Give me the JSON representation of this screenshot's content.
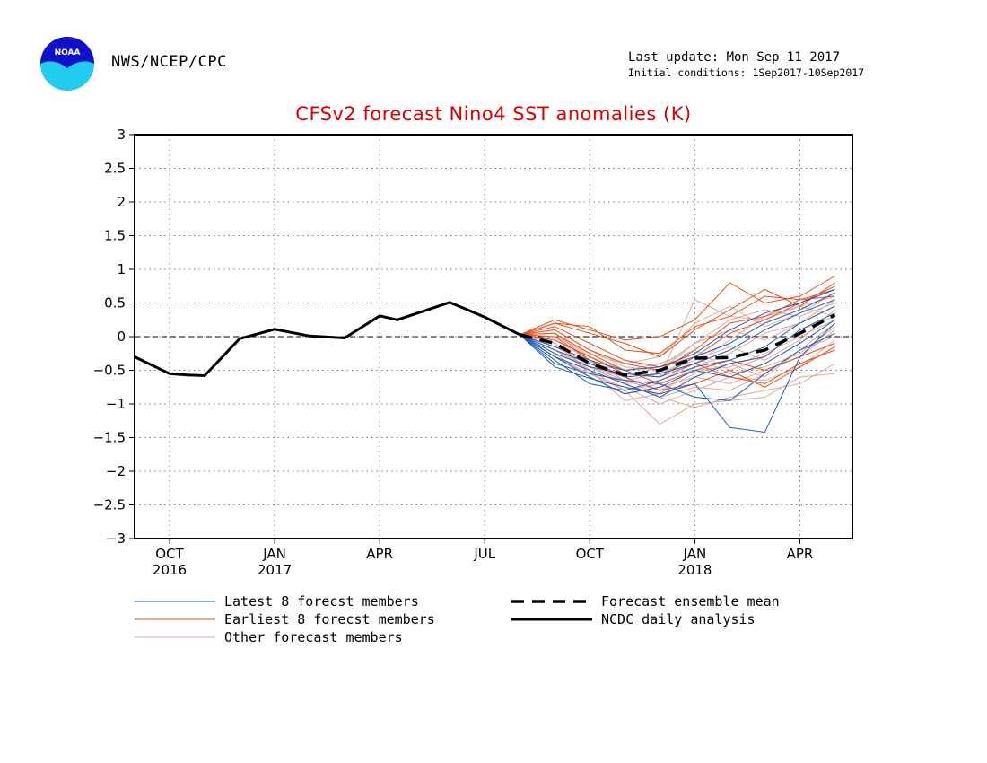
{
  "header": {
    "agency": "NWS/NCEP/CPC",
    "logo_text": "NOAA",
    "last_update": "Last update: Mon Sep 11 2017",
    "initial_conditions": "Initial conditions: 1Sep2017-10Sep2017"
  },
  "chart_data": {
    "type": "line",
    "title": "CFSv2 forecast Nino4 SST anomalies (K)",
    "xlim": [
      0,
      20.5
    ],
    "ylim": [
      -3,
      3
    ],
    "y_ticks": [
      3,
      2.5,
      2,
      1.5,
      1,
      0.5,
      0,
      -0.5,
      -1,
      -1.5,
      -2,
      -2.5,
      -3
    ],
    "y_tick_labels": [
      "3",
      "2.5",
      "2",
      "1.5",
      "1",
      "0.5",
      "0",
      "−0.5",
      "−1",
      "−1.5",
      "−2",
      "−2.5",
      "−3"
    ],
    "x_ticks": [
      {
        "x": 1,
        "label": "OCT",
        "year": "2016"
      },
      {
        "x": 4,
        "label": "JAN",
        "year": "2017"
      },
      {
        "x": 7,
        "label": "APR",
        "year": ""
      },
      {
        "x": 10,
        "label": "JUL",
        "year": ""
      },
      {
        "x": 13,
        "label": "OCT",
        "year": ""
      },
      {
        "x": 16,
        "label": "JAN",
        "year": "2018"
      },
      {
        "x": 19,
        "label": "APR",
        "year": ""
      }
    ],
    "grid": true,
    "zero_line": true,
    "observed": {
      "name": "NCDC daily analysis",
      "x": [
        0,
        1,
        1.5,
        2,
        3,
        4,
        5,
        6,
        7,
        7.5,
        9,
        10,
        11
      ],
      "y": [
        -0.3,
        -0.55,
        -0.57,
        -0.58,
        -0.03,
        0.11,
        0.01,
        -0.02,
        0.31,
        0.25,
        0.51,
        0.29,
        0.03
      ]
    },
    "ensemble_mean": {
      "name": "Forecast ensemble mean",
      "x": [
        11,
        12,
        13,
        14,
        15,
        16,
        17,
        18,
        19,
        20
      ],
      "y": [
        0.03,
        -0.1,
        -0.4,
        -0.57,
        -0.5,
        -0.32,
        -0.31,
        -0.2,
        0.05,
        0.32
      ]
    },
    "latest_members": {
      "name": "Latest 8 forecst members",
      "color": "#1f5fbf",
      "x": [
        11,
        12,
        13,
        14,
        15,
        16,
        17,
        18,
        19,
        20
      ],
      "members": [
        [
          0.03,
          -0.45,
          -0.62,
          -0.75,
          -0.85,
          -0.7,
          -1.35,
          -1.42,
          -0.3,
          0.2
        ],
        [
          0.03,
          -0.4,
          -0.55,
          -0.65,
          -0.7,
          -0.9,
          -0.95,
          -0.55,
          -0.2,
          0.05
        ],
        [
          0.03,
          -0.3,
          -0.5,
          -0.7,
          -0.9,
          -0.6,
          -0.4,
          -0.3,
          0.1,
          0.35
        ],
        [
          0.03,
          -0.25,
          -0.45,
          -0.55,
          -0.6,
          -0.3,
          -0.1,
          0.2,
          0.4,
          0.65
        ],
        [
          0.03,
          -0.2,
          -0.4,
          -0.6,
          -0.55,
          -0.4,
          -0.2,
          0.1,
          0.35,
          0.55
        ],
        [
          0.03,
          -0.35,
          -0.7,
          -0.8,
          -0.65,
          -0.45,
          -0.35,
          -0.15,
          0.2,
          0.45
        ],
        [
          0.03,
          -0.15,
          -0.35,
          -0.5,
          -0.45,
          -0.25,
          0.1,
          0.35,
          0.5,
          0.7
        ],
        [
          0.03,
          -0.3,
          -0.6,
          -0.85,
          -0.75,
          -0.5,
          -0.6,
          -0.4,
          -0.1,
          0.25
        ]
      ]
    },
    "earliest_members": {
      "name": "Earliest 8 forecst members",
      "color": "#e8501c",
      "x": [
        11,
        12,
        13,
        14,
        15,
        16,
        17,
        18,
        19,
        20
      ],
      "members": [
        [
          0.03,
          0.25,
          0.1,
          -0.05,
          0.0,
          0.25,
          0.8,
          0.5,
          0.6,
          0.9
        ],
        [
          0.03,
          0.2,
          0.05,
          -0.1,
          -0.3,
          0.1,
          0.4,
          0.7,
          0.45,
          0.8
        ],
        [
          0.03,
          0.1,
          -0.2,
          -0.4,
          -0.5,
          -0.2,
          0.2,
          0.3,
          0.55,
          0.6
        ],
        [
          0.03,
          -0.05,
          -0.3,
          -0.55,
          -0.6,
          -0.4,
          -0.6,
          -0.7,
          -0.4,
          -0.2
        ],
        [
          0.03,
          0.15,
          -0.1,
          -0.35,
          -0.45,
          -0.3,
          0.05,
          0.25,
          0.5,
          0.75
        ],
        [
          0.03,
          0.05,
          -0.25,
          -0.5,
          -0.7,
          -0.5,
          -0.35,
          -0.5,
          -0.3,
          -0.1
        ],
        [
          0.03,
          0.2,
          0.15,
          -0.2,
          -0.25,
          0.15,
          0.3,
          0.6,
          0.55,
          0.7
        ],
        [
          0.03,
          0.0,
          -0.35,
          -0.6,
          -0.8,
          -0.7,
          -0.5,
          -0.75,
          -0.45,
          -0.15
        ]
      ]
    },
    "other_members": {
      "name": "Other forecast members",
      "color": "#e0a89a",
      "x": [
        11,
        12,
        13,
        14,
        15,
        16,
        17,
        18,
        19,
        20
      ],
      "members": [
        [
          0.03,
          -0.1,
          -0.5,
          -0.8,
          -1.3,
          -1.0,
          -0.95,
          -0.9,
          -0.6,
          -0.55
        ],
        [
          0.03,
          -0.2,
          -0.45,
          -0.7,
          -0.9,
          -1.05,
          -0.9,
          -0.8,
          -0.7,
          -0.4
        ],
        [
          0.03,
          0.05,
          -0.3,
          -0.55,
          -0.6,
          0.55,
          0.3,
          0.25,
          0.45,
          0.6
        ],
        [
          0.03,
          -0.15,
          -0.4,
          -0.5,
          -0.4,
          -0.2,
          -0.5,
          -0.3,
          0.1,
          0.3
        ],
        [
          0.03,
          -0.05,
          -0.35,
          -0.65,
          -0.8,
          -0.55,
          -0.4,
          -0.6,
          -0.2,
          0.2
        ],
        [
          0.03,
          0.1,
          -0.2,
          -0.45,
          -0.5,
          -0.1,
          0.25,
          0.4,
          0.3,
          0.5
        ],
        [
          0.03,
          -0.25,
          -0.6,
          -0.85,
          -0.75,
          -0.6,
          -0.7,
          -0.5,
          -0.3,
          0.1
        ],
        [
          0.03,
          0.0,
          -0.25,
          -0.4,
          -0.3,
          0.2,
          0.45,
          0.15,
          0.35,
          0.65
        ],
        [
          0.03,
          -0.3,
          -0.55,
          -0.75,
          -1.0,
          -0.8,
          -0.6,
          -0.65,
          -0.45,
          -0.05
        ],
        [
          0.03,
          -0.1,
          -0.45,
          -0.6,
          -0.55,
          -0.35,
          -0.15,
          -0.35,
          -0.05,
          0.4
        ],
        [
          0.03,
          -0.2,
          -0.5,
          -0.95,
          -0.85,
          -0.45,
          -0.25,
          0.05,
          0.2,
          0.55
        ],
        [
          0.03,
          0.05,
          -0.35,
          -0.7,
          -0.65,
          -0.4,
          -0.05,
          0.3,
          0.45,
          0.3
        ],
        [
          0.03,
          -0.15,
          -0.4,
          -0.6,
          -0.9,
          -0.75,
          -0.8,
          -0.55,
          -0.2,
          0.0
        ],
        [
          0.03,
          -0.05,
          -0.3,
          -0.5,
          -0.45,
          -0.1,
          0.1,
          -0.05,
          0.2,
          0.45
        ],
        [
          0.03,
          -0.1,
          -0.55,
          -0.8,
          -0.7,
          -0.5,
          -0.45,
          -0.25,
          0.0,
          0.25
        ],
        [
          0.03,
          -0.25,
          -0.45,
          -0.65,
          -0.55,
          -0.3,
          -0.55,
          -0.45,
          -0.25,
          0.15
        ]
      ]
    },
    "legend": {
      "placement": "bottom",
      "items": [
        {
          "label": "Latest 8 forecst members",
          "color": "#1f5fbf",
          "style": "thin"
        },
        {
          "label": "Forecast ensemble mean",
          "color": "#000000",
          "style": "dashed"
        },
        {
          "label": "Earliest 8 forecst members",
          "color": "#e8501c",
          "style": "thin"
        },
        {
          "label": "NCDC daily analysis",
          "color": "#000000",
          "style": "thick"
        },
        {
          "label": "Other forecast members",
          "color": "#e0a89a",
          "style": "thin"
        }
      ]
    }
  }
}
